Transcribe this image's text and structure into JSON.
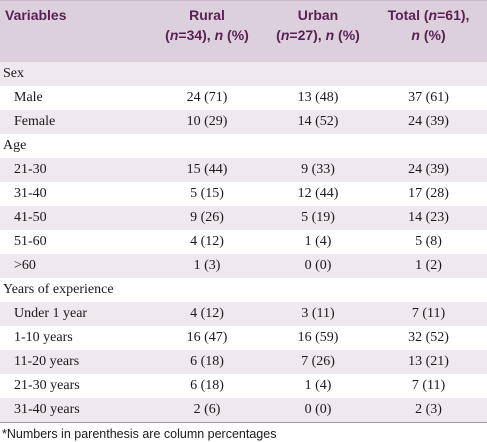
{
  "table": {
    "headers": {
      "variables": "Variables",
      "rural_line1": "Rural",
      "rural_n": "n",
      "rural_rest1": "=34), ",
      "rural_n2": "n",
      "rural_rest2": " (%)",
      "urban_line1": "Urban",
      "urban_n": "n",
      "urban_rest1": "=27), ",
      "urban_n2": "n",
      "urban_rest2": " (%)",
      "total_line1a": "Total (",
      "total_n": "n",
      "total_line1b": "=61),",
      "total_n2": "n",
      "total_rest2": " (%)"
    },
    "rows": [
      {
        "label": "Sex",
        "section": true,
        "rural": "",
        "urban": "",
        "total": ""
      },
      {
        "label": "Male",
        "section": false,
        "rural": "24 (71)",
        "urban": "13 (48)",
        "total": "37 (61)"
      },
      {
        "label": "Female",
        "section": false,
        "rural": "10 (29)",
        "urban": "14 (52)",
        "total": "24 (39)"
      },
      {
        "label": "Age",
        "section": true,
        "rural": "",
        "urban": "",
        "total": ""
      },
      {
        "label": "21-30",
        "section": false,
        "rural": "15 (44)",
        "urban": "9 (33)",
        "total": "24 (39)"
      },
      {
        "label": "31-40",
        "section": false,
        "rural": "5 (15)",
        "urban": "12 (44)",
        "total": "17 (28)"
      },
      {
        "label": "41-50",
        "section": false,
        "rural": "9 (26)",
        "urban": "5 (19)",
        "total": "14 (23)"
      },
      {
        "label": "51-60",
        "section": false,
        "rural": "4 (12)",
        "urban": "1 (4)",
        "total": "5 (8)"
      },
      {
        "label": ">60",
        "section": false,
        "rural": "1 (3)",
        "urban": "0 (0)",
        "total": "1 (2)"
      },
      {
        "label": "Years of experience",
        "section": true,
        "rural": "",
        "urban": "",
        "total": ""
      },
      {
        "label": "Under 1 year",
        "section": false,
        "rural": "4 (12)",
        "urban": "3 (11)",
        "total": "7 (11)"
      },
      {
        "label": "1-10 years",
        "section": false,
        "rural": "16 (47)",
        "urban": "16 (59)",
        "total": "32 (52)"
      },
      {
        "label": "11-20 years",
        "section": false,
        "rural": "6 (18)",
        "urban": "7 (26)",
        "total": "13 (21)"
      },
      {
        "label": "21-30 years",
        "section": false,
        "rural": "6 (18)",
        "urban": "1 (4)",
        "total": "7 (11)"
      },
      {
        "label": "31-40 years",
        "section": false,
        "rural": "2 (6)",
        "urban": "0 (0)",
        "total": "2 (3)"
      }
    ],
    "footnote": "*Numbers in parenthesis are column percentages"
  },
  "colors": {
    "header_bg": "#dcd0dd",
    "header_text": "#5a1f55",
    "stripe": "#efe8ef"
  }
}
